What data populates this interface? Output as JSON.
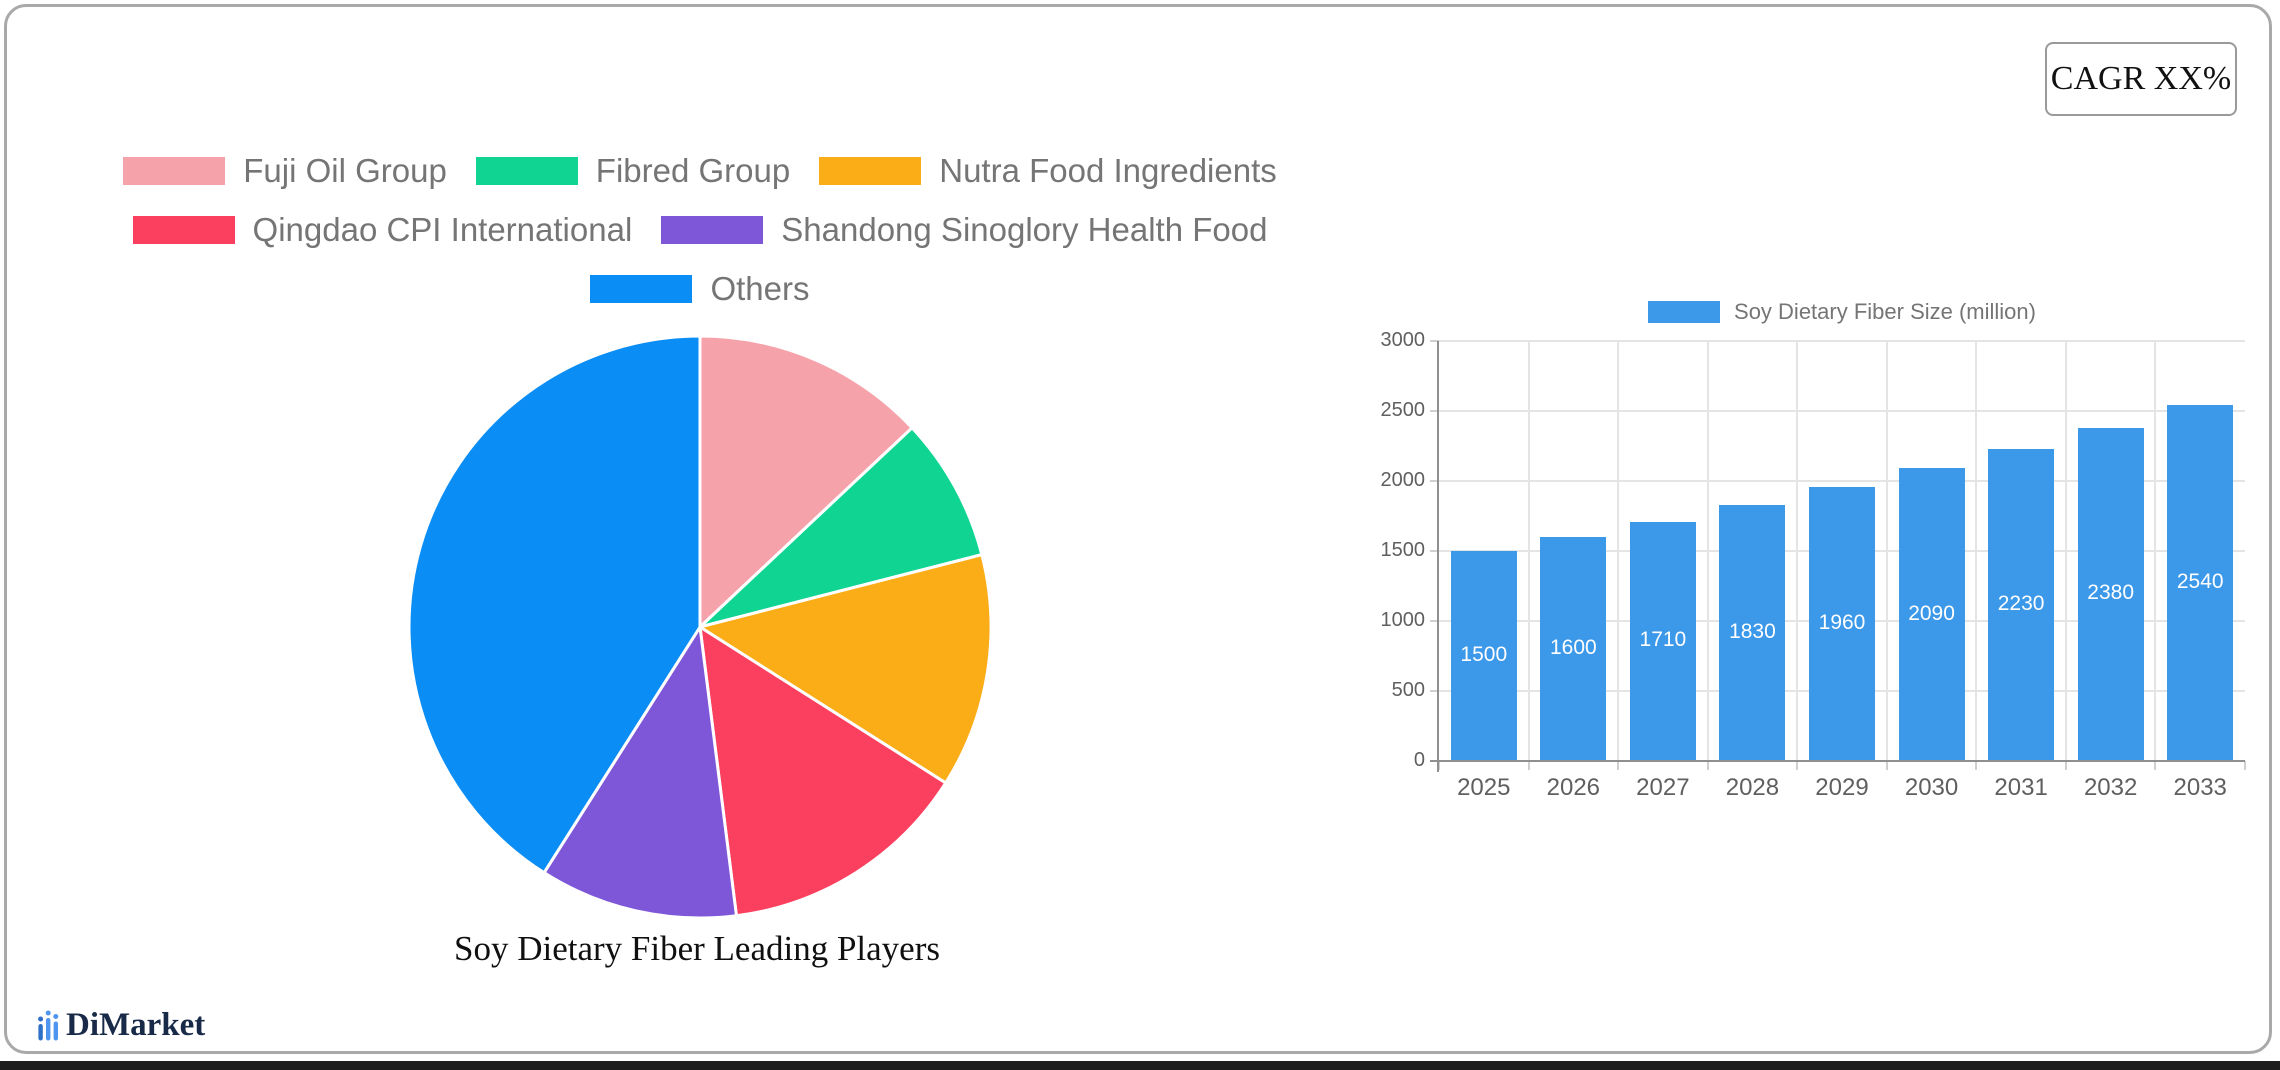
{
  "cagr_label": "CAGR XX%",
  "logo": {
    "text": "DiMarket"
  },
  "chart_data": [
    {
      "type": "pie",
      "title": "Soy Dietary Fiber Leading Players",
      "labels": [
        "Fuji Oil Group",
        "Fibred Group",
        "Nutra Food Ingredients",
        "Qingdao CPI International",
        "Shandong Sinoglory Health Food",
        "Others"
      ],
      "values": [
        13,
        8,
        13,
        14,
        11,
        41
      ],
      "colors": [
        "#f6a2aa",
        "#10d592",
        "#fbad18",
        "#fb3f5e",
        "#7e57d9",
        "#0a8df5"
      ],
      "legend_rows": [
        [
          0,
          1,
          2
        ],
        [
          3,
          4
        ],
        [
          5
        ]
      ],
      "legend_position": "top",
      "start_angle_deg": -90,
      "direction": "clockwise"
    },
    {
      "type": "bar",
      "legend": "Soy Dietary Fiber Size (million)",
      "categories": [
        "2025",
        "2026",
        "2027",
        "2028",
        "2029",
        "2030",
        "2031",
        "2032",
        "2033"
      ],
      "values": [
        1500,
        1600,
        1710,
        1830,
        1960,
        2090,
        2230,
        2380,
        2540
      ],
      "bar_color": "#3c98e8",
      "ylim": [
        0,
        3000
      ],
      "yticks": [
        0,
        500,
        1000,
        1500,
        2000,
        2500,
        3000
      ],
      "grid": true,
      "legend_position": "top",
      "value_labels": "inside-center-white"
    }
  ]
}
